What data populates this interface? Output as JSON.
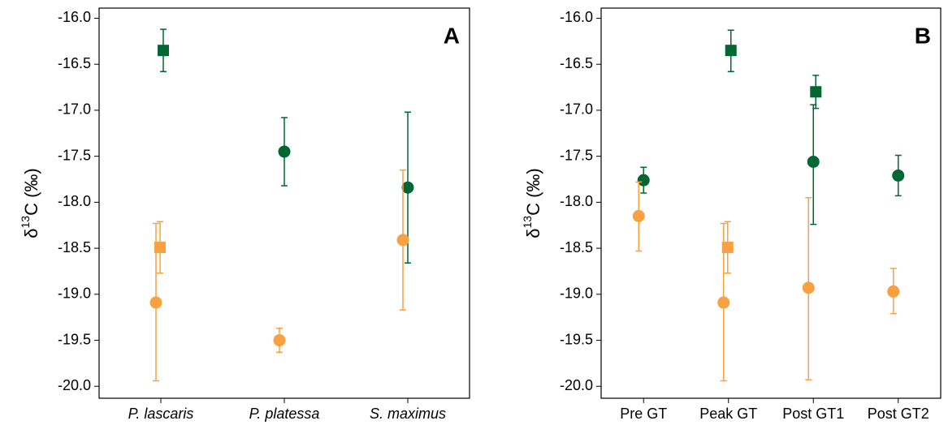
{
  "chart_data": [
    {
      "type": "errorpoint",
      "panel_label": "A",
      "ylabel": {
        "symbol": "δ",
        "sup": "13",
        "rest": "C (‰)"
      },
      "categories": [
        "P. lascaris",
        "P. platessa",
        "S. maximus"
      ],
      "italic_categories": true,
      "ylim": [
        -20.13,
        -15.89
      ],
      "yticks": [
        {
          "value": -16,
          "label": "-16.0"
        },
        {
          "value": -16.5,
          "label": "-16.5"
        },
        {
          "value": -17,
          "label": "-17.0"
        },
        {
          "value": -17.5,
          "label": "-17.5"
        },
        {
          "value": -18,
          "label": "-18.0"
        },
        {
          "value": -18.5,
          "label": "-18.5"
        },
        {
          "value": -19,
          "label": "-19.0"
        },
        {
          "value": -19.5,
          "label": "-19.5"
        },
        {
          "value": -20,
          "label": "-20.0"
        }
      ],
      "series": [
        {
          "color": "#006633",
          "marker": "square",
          "values": [
            -16.35,
            null,
            null
          ],
          "low": [
            -16.58,
            null,
            null
          ],
          "high": [
            -16.12,
            null,
            null
          ]
        },
        {
          "color": "#006633",
          "marker": "circle",
          "values": [
            null,
            -17.45,
            -17.84
          ],
          "low": [
            null,
            -17.82,
            -18.66
          ],
          "high": [
            null,
            -17.08,
            -17.02
          ]
        },
        {
          "color": "#F9A040",
          "marker": "square",
          "values": [
            -18.49,
            null,
            null
          ],
          "low": [
            -18.77,
            null,
            null
          ],
          "high": [
            -18.21,
            null,
            null
          ]
        },
        {
          "color": "#F9A040",
          "marker": "circle",
          "values": [
            -19.09,
            -19.5,
            -18.41
          ],
          "low": [
            -19.94,
            -19.63,
            -19.17
          ],
          "high": [
            -18.23,
            -19.37,
            -17.65
          ]
        }
      ]
    },
    {
      "type": "errorpoint",
      "panel_label": "B",
      "ylabel": {
        "symbol": "δ",
        "sup": "13",
        "rest": "C (‰)"
      },
      "categories": [
        "Pre GT",
        "Peak GT",
        "Post GT1",
        "Post GT2"
      ],
      "italic_categories": false,
      "ylim": [
        -20.13,
        -15.89
      ],
      "yticks": [
        {
          "value": -16,
          "label": "-16.0"
        },
        {
          "value": -16.5,
          "label": "-16.5"
        },
        {
          "value": -17,
          "label": "-17.0"
        },
        {
          "value": -17.5,
          "label": "-17.5"
        },
        {
          "value": -18,
          "label": "-18.0"
        },
        {
          "value": -18.5,
          "label": "-18.5"
        },
        {
          "value": -19,
          "label": "-19.0"
        },
        {
          "value": -19.5,
          "label": "-19.5"
        },
        {
          "value": -20,
          "label": "-20.0"
        }
      ],
      "series": [
        {
          "color": "#006633",
          "marker": "square",
          "values": [
            null,
            -16.35,
            -16.8,
            null
          ],
          "low": [
            null,
            -16.58,
            -16.98,
            null
          ],
          "high": [
            null,
            -16.13,
            -16.62,
            null
          ]
        },
        {
          "color": "#006633",
          "marker": "circle",
          "values": [
            -17.76,
            null,
            -17.56,
            -17.71
          ],
          "low": [
            -17.9,
            null,
            -18.24,
            -17.93
          ],
          "high": [
            -17.62,
            null,
            -16.94,
            -17.49
          ]
        },
        {
          "color": "#F9A040",
          "marker": "square",
          "values": [
            null,
            -18.49,
            null,
            null
          ],
          "low": [
            null,
            -18.77,
            null,
            null
          ],
          "high": [
            null,
            -18.21,
            null,
            null
          ]
        },
        {
          "color": "#F9A040",
          "marker": "circle",
          "values": [
            -18.15,
            -19.09,
            -18.93,
            -18.97
          ],
          "low": [
            -18.53,
            -19.94,
            -19.93,
            -19.21
          ],
          "high": [
            -17.78,
            -18.23,
            -17.95,
            -18.72
          ]
        }
      ]
    }
  ]
}
